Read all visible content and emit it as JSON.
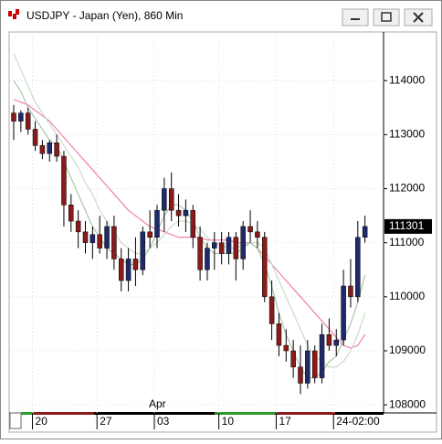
{
  "chart_data": {
    "type": "candlestick",
    "title": "USDJPY - Japan (Yen), 860 Min",
    "categories": [
      null,
      null,
      null,
      "20",
      null,
      null,
      null,
      null,
      null,
      null,
      null,
      null,
      "27",
      null,
      null,
      null,
      null,
      null,
      null,
      null,
      "03",
      null,
      null,
      null,
      null,
      null,
      null,
      null,
      null,
      "10",
      null,
      null,
      null,
      null,
      null,
      null,
      null,
      "17",
      null,
      null,
      null,
      null,
      null,
      null,
      null,
      "24-02:00",
      null,
      null,
      null,
      null
    ],
    "month_label": "Apr",
    "open": [
      113400,
      113250,
      113400,
      113100,
      112800,
      112650,
      112850,
      112600,
      111700,
      111400,
      111200,
      111000,
      111150,
      110900,
      111300,
      110700,
      110300,
      110700,
      110500,
      111200,
      111100,
      111600,
      112000,
      111600,
      111500,
      111600,
      111100,
      110500,
      110900,
      111000,
      110800,
      111100,
      110700,
      111300,
      111200,
      111100,
      110000,
      109500,
      109100,
      109000,
      108700,
      108400,
      109000,
      108500,
      109300,
      109100,
      109200,
      110200,
      110000,
      111100
    ],
    "high": [
      113550,
      113450,
      113500,
      113250,
      112900,
      112900,
      113000,
      112700,
      111900,
      111600,
      111400,
      111300,
      111500,
      111400,
      111500,
      110900,
      110900,
      111100,
      111300,
      111600,
      111700,
      112200,
      112300,
      111900,
      111800,
      111700,
      111300,
      111000,
      111200,
      111200,
      111200,
      111200,
      111400,
      111600,
      111400,
      111200,
      110300,
      109700,
      109400,
      109200,
      109100,
      109200,
      109100,
      109500,
      109600,
      109400,
      110500,
      110700,
      111400,
      111500
    ],
    "low": [
      112900,
      113050,
      113000,
      112700,
      112550,
      112500,
      112500,
      111300,
      111200,
      110900,
      110800,
      110700,
      110800,
      110700,
      110500,
      110100,
      110100,
      110200,
      110400,
      110900,
      110900,
      111200,
      111400,
      111300,
      111200,
      110900,
      110300,
      110300,
      110500,
      110600,
      110600,
      110300,
      110500,
      111000,
      110900,
      109900,
      109200,
      108900,
      108800,
      108500,
      108200,
      108300,
      108400,
      108400,
      109000,
      108900,
      109100,
      109800,
      109900,
      111000
    ],
    "close": [
      113250,
      113400,
      113100,
      112800,
      112650,
      112850,
      112600,
      111700,
      111400,
      111200,
      111000,
      111150,
      110900,
      111300,
      110700,
      110300,
      110700,
      110500,
      111200,
      111100,
      111600,
      112000,
      111600,
      111500,
      111600,
      111100,
      110500,
      110900,
      111000,
      110800,
      111100,
      110700,
      111300,
      111200,
      111100,
      110000,
      109500,
      109100,
      109000,
      108700,
      108400,
      109000,
      108500,
      109300,
      109100,
      109200,
      110200,
      110000,
      111100,
      111301
    ],
    "up_color": "#1f2a6b",
    "down_color": "#8b1a1a",
    "lines": [
      {
        "color": "#f07fb0",
        "values": [
          113650,
          113600,
          113550,
          113450,
          113350,
          113250,
          113100,
          112950,
          112800,
          112650,
          112500,
          112350,
          112200,
          112050,
          111900,
          111750,
          111600,
          111500,
          111400,
          111300,
          111250,
          111200,
          111150,
          111100,
          111100,
          111100,
          111100,
          111050,
          111050,
          111050,
          111050,
          111000,
          111000,
          111000,
          110900,
          110750,
          110600,
          110450,
          110300,
          110150,
          110000,
          109850,
          109700,
          109550,
          109400,
          109250,
          109100,
          109050,
          109100,
          109300
        ]
      },
      {
        "color": "#c8dcc8",
        "values": [
          114500,
          114200,
          113900,
          113600,
          113400,
          113200,
          113000,
          112800,
          112600,
          112400,
          112100,
          111900,
          111600,
          111400,
          111200,
          111000,
          110900,
          110800,
          110800,
          110900,
          111000,
          111150,
          111300,
          111400,
          111400,
          111350,
          111250,
          111100,
          111000,
          110950,
          110900,
          110900,
          110950,
          111000,
          111000,
          110900,
          110600,
          110300,
          110000,
          109700,
          109400,
          109100,
          108900,
          108800,
          108700,
          108700,
          108800,
          109000,
          109300,
          109700
        ]
      },
      {
        "color": "#a8c8a8",
        "values": [
          114000,
          113800,
          113500,
          113300,
          113100,
          112900,
          112800,
          112500,
          112200,
          111900,
          111600,
          111300,
          111100,
          110900,
          110800,
          110700,
          110600,
          110600,
          110700,
          110900,
          111200,
          111500,
          111700,
          111700,
          111600,
          111400,
          111100,
          110900,
          110800,
          110800,
          110800,
          110800,
          110900,
          111000,
          110900,
          110600,
          110200,
          109700,
          109300,
          109000,
          108700,
          108500,
          108500,
          108600,
          108800,
          108900,
          109200,
          109500,
          109900,
          110400
        ]
      }
    ],
    "ylim": [
      107850,
      114900
    ],
    "yticks": [
      108000,
      109000,
      110000,
      111000,
      112000,
      113000,
      114000
    ],
    "grid": true
  }
}
